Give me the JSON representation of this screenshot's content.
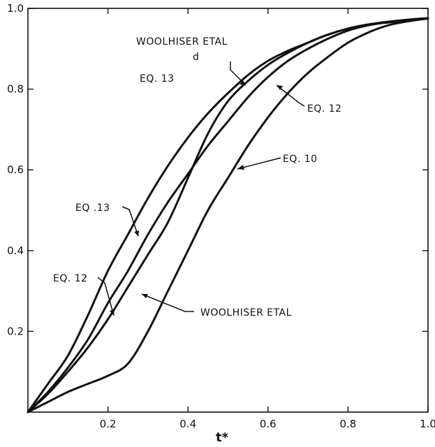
{
  "chart_data": {
    "type": "line",
    "title": "",
    "xlabel": "t*",
    "ylabel": "",
    "xlim": [
      0,
      1
    ],
    "ylim": [
      0,
      1
    ],
    "grid": false,
    "x_ticks": [
      "0.2",
      "0.4",
      "0.6",
      "0.8",
      "1.0"
    ],
    "y_ticks": [
      "0.2",
      "0.4",
      "0.6",
      "0.8",
      "1.0"
    ],
    "series": [
      {
        "name": "EQ.13",
        "x": [
          0,
          0.05,
          0.1,
          0.15,
          0.2,
          0.25,
          0.3,
          0.35,
          0.4,
          0.45,
          0.5,
          0.55,
          0.6,
          0.65,
          0.7,
          0.75,
          0.8,
          0.85,
          0.9,
          0.95,
          1.0
        ],
        "y": [
          0,
          0.07,
          0.14,
          0.24,
          0.35,
          0.44,
          0.53,
          0.61,
          0.68,
          0.74,
          0.79,
          0.835,
          0.87,
          0.895,
          0.915,
          0.935,
          0.95,
          0.96,
          0.965,
          0.97,
          0.975
        ]
      },
      {
        "name": "EQ.12",
        "x": [
          0,
          0.05,
          0.1,
          0.15,
          0.2,
          0.25,
          0.3,
          0.35,
          0.4,
          0.45,
          0.5,
          0.55,
          0.6,
          0.65,
          0.7,
          0.75,
          0.8,
          0.85,
          0.9,
          0.95,
          1.0
        ],
        "y": [
          0,
          0.05,
          0.11,
          0.18,
          0.27,
          0.35,
          0.44,
          0.52,
          0.59,
          0.66,
          0.72,
          0.78,
          0.83,
          0.87,
          0.9,
          0.925,
          0.945,
          0.958,
          0.966,
          0.972,
          0.976
        ]
      },
      {
        "name": "WOOLHISER ETAL",
        "x": [
          0,
          0.05,
          0.1,
          0.15,
          0.2,
          0.25,
          0.3,
          0.35,
          0.4,
          0.45,
          0.5,
          0.55,
          0.6,
          0.65,
          0.7,
          0.75,
          0.8,
          0.85,
          0.9,
          0.95,
          1.0
        ],
        "y": [
          0,
          0.045,
          0.1,
          0.16,
          0.23,
          0.31,
          0.39,
          0.47,
          0.58,
          0.69,
          0.77,
          0.82,
          0.86,
          0.89,
          0.915,
          0.935,
          0.95,
          0.96,
          0.967,
          0.972,
          0.975
        ]
      },
      {
        "name": "EQ. 10",
        "x": [
          0,
          0.05,
          0.1,
          0.15,
          0.2,
          0.25,
          0.3,
          0.35,
          0.4,
          0.45,
          0.5,
          0.55,
          0.6,
          0.65,
          0.7,
          0.75,
          0.8,
          0.85,
          0.9,
          0.95,
          1.0
        ],
        "y": [
          0,
          0.025,
          0.05,
          0.07,
          0.09,
          0.12,
          0.2,
          0.3,
          0.4,
          0.5,
          0.58,
          0.66,
          0.73,
          0.79,
          0.84,
          0.88,
          0.915,
          0.94,
          0.958,
          0.968,
          0.975
        ]
      }
    ],
    "annotations": [
      {
        "text": "WOOLHISER  ETAL",
        "target": "WOOLHISER ETAL",
        "x": 0.56,
        "y": 0.8
      },
      {
        "text": "d",
        "target": "WOOLHISER ETAL",
        "x": 0.56,
        "y": 0.8
      },
      {
        "text": "EQ. 13",
        "target": "EQ.13",
        "x": 0.56,
        "y": 0.8
      },
      {
        "text": "EQ. 12",
        "target": "EQ.12",
        "x": 0.62,
        "y": 0.82
      },
      {
        "text": "EQ. 10",
        "target": "EQ. 10",
        "x": 0.52,
        "y": 0.6
      },
      {
        "text": "EQ .13",
        "target": "EQ.13",
        "x": 0.28,
        "y": 0.47
      },
      {
        "text": "EQ. 12",
        "target": "EQ.12",
        "x": 0.22,
        "y": 0.27
      },
      {
        "text": "WOOLHISER  ETAL",
        "target": "WOOLHISER ETAL",
        "x": 0.28,
        "y": 0.3
      }
    ]
  }
}
